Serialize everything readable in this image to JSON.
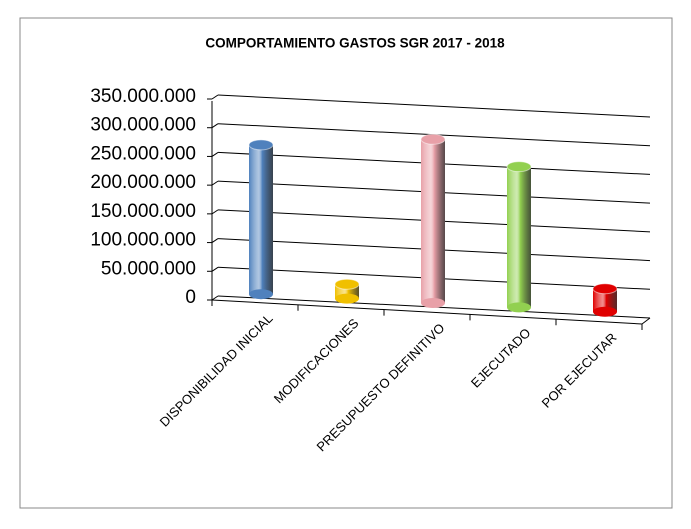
{
  "chart_data": {
    "type": "bar3d",
    "title": "COMPORTAMIENTO  GASTOS  SGR  2017 - 2018",
    "categories": [
      "DISPONIBILIDAD INICIAL",
      "MODIFICACIONES",
      "PRESUPUESTO DEFINITIVO",
      "EJECUTADO",
      "POR EJECUTAR"
    ],
    "values": [
      260000000,
      25000000,
      285000000,
      245000000,
      40000000
    ],
    "colors": [
      "#4f81bd",
      "#f0c000",
      "#e8a0a8",
      "#92d050",
      "#e00000"
    ],
    "ylim": [
      0,
      350000000
    ],
    "yticks": [
      {
        "value": 0,
        "label": "0"
      },
      {
        "value": 50000000,
        "label": "50.000.000"
      },
      {
        "value": 100000000,
        "label": "100.000.000"
      },
      {
        "value": 150000000,
        "label": "150.000.000"
      },
      {
        "value": 200000000,
        "label": "200.000.000"
      },
      {
        "value": 250000000,
        "label": "250.000.000"
      },
      {
        "value": 300000000,
        "label": "300.000.000"
      },
      {
        "value": 350000000,
        "label": "350.000.000"
      }
    ],
    "grid": true
  }
}
